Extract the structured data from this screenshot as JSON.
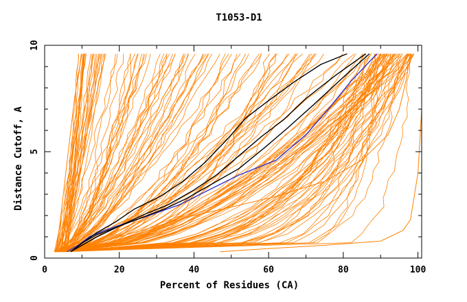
{
  "chart_data": {
    "type": "line",
    "title": "T1053-D1",
    "xlabel": "Percent of Residues (CA)",
    "ylabel": "Distance Cutoff, A",
    "xlim": [
      0,
      101
    ],
    "ylim": [
      0,
      10
    ],
    "x_ticks": [
      "0",
      "20",
      "40",
      "60",
      "80",
      "100"
    ],
    "y_ticks": [
      "0",
      "5",
      "10"
    ],
    "grid": false,
    "legend": "none",
    "colors": {
      "models": "#ff8000",
      "highlight_black": "#000000",
      "highlight_blue": "#3333cc"
    },
    "series": [
      {
        "color": "#3333cc",
        "x": [
          6,
          9,
          12,
          16,
          21,
          28,
          36,
          44,
          52,
          62,
          70,
          76,
          82,
          89
        ],
        "y": [
          0.3,
          0.6,
          1.0,
          1.3,
          1.6,
          2.0,
          2.5,
          3.2,
          3.9,
          4.6,
          5.8,
          7.0,
          8.3,
          9.6
        ]
      },
      {
        "color": "#000000",
        "x": [
          7,
          10,
          14,
          20,
          26,
          32,
          38,
          45,
          52,
          59,
          65,
          72,
          80,
          87
        ],
        "y": [
          0.3,
          0.6,
          1.0,
          1.5,
          1.9,
          2.3,
          2.8,
          3.5,
          4.2,
          5.2,
          6.1,
          7.2,
          8.5,
          9.6
        ]
      },
      {
        "color": "#000000",
        "x": [
          7,
          10,
          14,
          20,
          26,
          33,
          40,
          46,
          52,
          58,
          64,
          70,
          78,
          86
        ],
        "y": [
          0.3,
          0.7,
          1.1,
          1.5,
          2.0,
          2.5,
          3.2,
          3.9,
          4.8,
          5.7,
          6.5,
          7.5,
          8.6,
          9.6
        ]
      },
      {
        "color": "#000000",
        "x": [
          7,
          10,
          14,
          19,
          24,
          31,
          37,
          43,
          49,
          54,
          60,
          67,
          74,
          81
        ],
        "y": [
          0.3,
          0.7,
          1.2,
          1.7,
          2.3,
          2.9,
          3.6,
          4.5,
          5.6,
          6.6,
          7.4,
          8.3,
          9.1,
          9.6
        ]
      },
      {
        "color": "#ff8000",
        "x": [
          47,
          60,
          75,
          90,
          96,
          98,
          100,
          101,
          101
        ],
        "y": [
          0.3,
          0.45,
          0.6,
          0.8,
          1.3,
          1.8,
          4.0,
          7.0,
          9.6
        ]
      },
      {
        "color": "#ff8000",
        "x": [
          3,
          4,
          5,
          6,
          7,
          8,
          9,
          10
        ],
        "y": [
          0.3,
          1.5,
          3.0,
          4.5,
          6.0,
          7.5,
          8.6,
          9.6
        ]
      },
      {
        "color": "#ff8000",
        "x": [
          98,
          97,
          95,
          92,
          85,
          75,
          62,
          50,
          40,
          30,
          20,
          12,
          6
        ],
        "y": [
          9.6,
          8.5,
          7.0,
          5.8,
          4.6,
          3.6,
          2.9,
          2.4,
          2.0,
          1.5,
          1.0,
          0.6,
          0.3
        ]
      }
    ],
    "families": [
      {
        "count": 26,
        "x_end_min": 9,
        "x_end_max": 17,
        "curve": 0.2,
        "wobble": 0.25
      },
      {
        "count": 34,
        "x_end_min": 17,
        "x_end_max": 48,
        "curve": 0.35,
        "wobble": 0.6
      },
      {
        "count": 30,
        "x_end_min": 48,
        "x_end_max": 85,
        "curve": 0.55,
        "wobble": 0.9
      },
      {
        "count": 60,
        "x_end_min": 85,
        "x_end_max": 99,
        "curve": 0.8,
        "wobble": 0.8
      }
    ]
  }
}
